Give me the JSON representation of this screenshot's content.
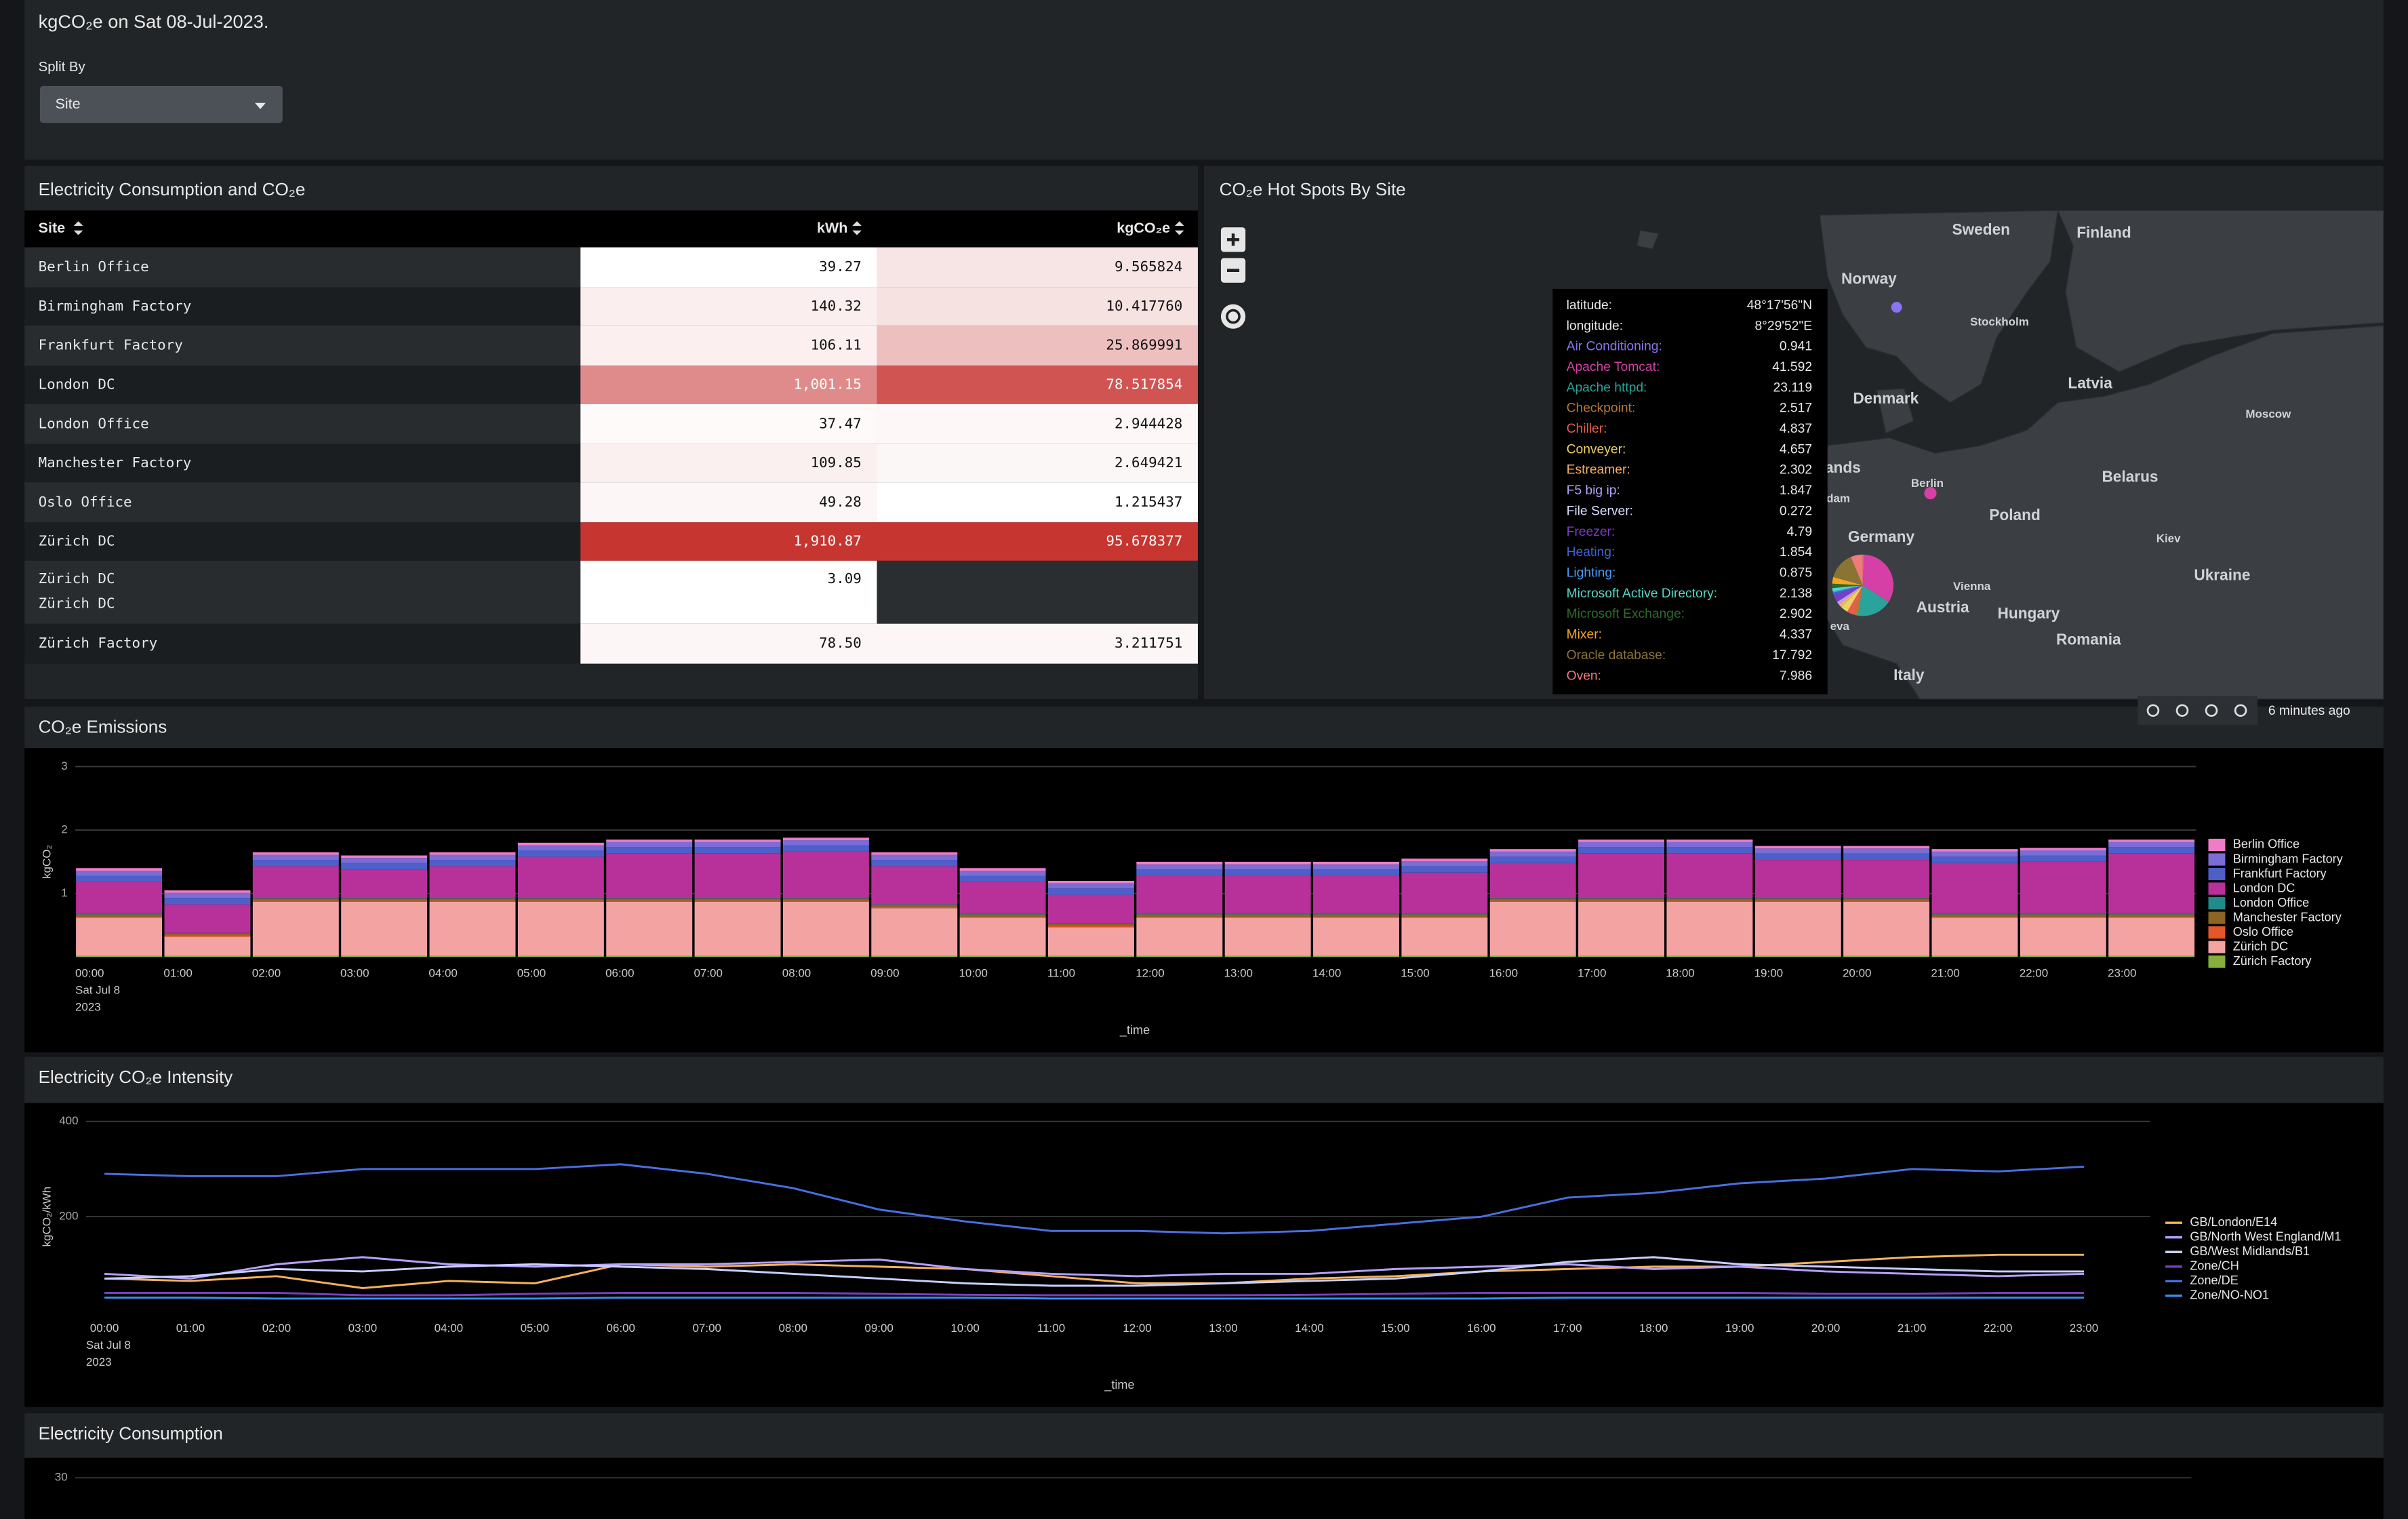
{
  "header": {
    "title": "kgCO₂e on Sat 08-Jul-2023.",
    "split_by_label": "Split By",
    "split_by_value": "Site"
  },
  "table_panel": {
    "title": "Electricity Consumption and CO₂e",
    "columns": [
      "Site",
      "kWh",
      "kgCO₂e"
    ],
    "rows": [
      [
        "Berlin Office",
        "39.27",
        "9.565824"
      ],
      [
        "Birmingham Factory",
        "140.32",
        "10.417760"
      ],
      [
        "Frankfurt Factory",
        "106.11",
        "25.869991"
      ],
      [
        "London DC",
        "1,001.15",
        "78.517854"
      ],
      [
        "London Office",
        "37.47",
        "2.944428"
      ],
      [
        "Manchester Factory",
        "109.85",
        "2.649421"
      ],
      [
        "Oslo Office",
        "49.28",
        "1.215437"
      ],
      [
        "Zürich DC",
        "1,910.87",
        "95.678377"
      ],
      [
        [
          "Zürich DC",
          "Zürich DC"
        ],
        "3.09"
      ],
      [
        "Zürich Factory",
        "78.50",
        "3.211751"
      ]
    ],
    "cell_colors": [
      [
        "#ffffff",
        "#f7e4e4"
      ],
      [
        "#fbeeee",
        "#f7e2e2"
      ],
      [
        "#fbefef",
        "#eebfbf"
      ],
      [
        "#df8b8b",
        "#cf5452"
      ],
      [
        "#fefafa",
        "#fdf7f7"
      ],
      [
        "#fbf0f0",
        "#fcf7f7"
      ],
      [
        "#fdf6f6",
        "#ffffff"
      ],
      [
        "#c73530",
        "#c73530"
      ],
      [
        "#ffffff"
      ],
      [
        "#fdf6f6",
        "#fcf6f6"
      ]
    ]
  },
  "map_panel": {
    "title": "CO₂e Hot Spots By Site",
    "place_labels": [
      "Sweden",
      "Finland",
      "Norway",
      "Stockholm",
      "Latvia",
      "Moscow",
      "Denmark",
      "Belarus",
      "ands",
      "dam",
      "Berlin",
      "Poland",
      "Germany",
      "Kiev",
      "Ukraine",
      "Vienna",
      "Austria",
      "Hungary",
      "eva",
      "Romania",
      "Italy"
    ],
    "tooltip": {
      "latitude_label": "latitude:",
      "latitude": "48°17'56\"N",
      "longitude_label": "longitude:",
      "longitude": "8°29'52\"E",
      "items": [
        {
          "name": "Air Conditioning:",
          "color": "#8b74f2",
          "value": 0.941
        },
        {
          "name": "Apache Tomcat:",
          "color": "#d63fa6",
          "value": 41.592
        },
        {
          "name": "Apache httpd:",
          "color": "#2aa39b",
          "value": 23.119
        },
        {
          "name": "Checkpoint:",
          "color": "#b97836",
          "value": 2.517
        },
        {
          "name": "Chiller:",
          "color": "#e5604a",
          "value": 4.837
        },
        {
          "name": "Conveyer:",
          "color": "#f0d262",
          "value": 4.657
        },
        {
          "name": "Estreamer:",
          "color": "#f5b06a",
          "value": 2.302
        },
        {
          "name": "F5 big ip:",
          "color": "#b3a3ff",
          "value": 1.847
        },
        {
          "name": "File Server:",
          "color": "#d9ddff",
          "value": 0.272
        },
        {
          "name": "Freezer:",
          "color": "#7d3bc8",
          "value": 4.79
        },
        {
          "name": "Heating:",
          "color": "#3f62d6",
          "value": 1.854
        },
        {
          "name": "Lighting:",
          "color": "#4a9af0",
          "value": 0.875
        },
        {
          "name": "Microsoft Active Directory:",
          "color": "#58d6c6",
          "value": 2.138
        },
        {
          "name": "Microsoft Exchange:",
          "color": "#2e6b2a",
          "value": 2.902
        },
        {
          "name": "Mixer:",
          "color": "#f5a623",
          "value": 4.337
        },
        {
          "name": "Oracle database:",
          "color": "#8a7433",
          "value": 17.792
        },
        {
          "name": "Oven:",
          "color": "#f07a7a",
          "value": 7.986
        }
      ]
    },
    "updated": "6 minutes ago"
  },
  "chart_data": [
    {
      "type": "stacked_bar",
      "title": "CO₂e Emissions",
      "y_label": "kgCO₂",
      "x_label": "_time",
      "x_date_lines": [
        "Sat Jul 8",
        "2023"
      ],
      "categories": [
        "00:00",
        "01:00",
        "02:00",
        "03:00",
        "04:00",
        "05:00",
        "06:00",
        "07:00",
        "08:00",
        "09:00",
        "10:00",
        "11:00",
        "12:00",
        "13:00",
        "14:00",
        "15:00",
        "16:00",
        "17:00",
        "18:00",
        "19:00",
        "20:00",
        "21:00",
        "22:00",
        "23:00"
      ],
      "ylim": [
        0,
        3
      ],
      "yticks": [
        1,
        2,
        3
      ],
      "grid": true,
      "series": [
        {
          "name": "Berlin Office",
          "color": "#f07cc8",
          "values": [
            0.04,
            0.04,
            0.04,
            0.04,
            0.04,
            0.04,
            0.04,
            0.04,
            0.04,
            0.04,
            0.04,
            0.04,
            0.04,
            0.04,
            0.04,
            0.04,
            0.04,
            0.04,
            0.04,
            0.04,
            0.04,
            0.04,
            0.04,
            0.04
          ]
        },
        {
          "name": "Birmingham Factory",
          "color": "#7b6cd6",
          "values": [
            0.08,
            0.08,
            0.08,
            0.08,
            0.08,
            0.08,
            0.08,
            0.08,
            0.08,
            0.08,
            0.08,
            0.08,
            0.08,
            0.08,
            0.08,
            0.08,
            0.08,
            0.08,
            0.08,
            0.08,
            0.08,
            0.08,
            0.08,
            0.08
          ]
        },
        {
          "name": "Frankfurt Factory",
          "color": "#4d5fc8",
          "values": [
            0.1,
            0.1,
            0.1,
            0.1,
            0.1,
            0.1,
            0.1,
            0.1,
            0.1,
            0.1,
            0.1,
            0.1,
            0.1,
            0.1,
            0.1,
            0.1,
            0.1,
            0.1,
            0.1,
            0.1,
            0.1,
            0.1,
            0.1,
            0.1
          ]
        },
        {
          "name": "London DC",
          "color": "#b8309a",
          "values": [
            0.5,
            0.45,
            0.5,
            0.45,
            0.5,
            0.65,
            0.7,
            0.7,
            0.73,
            0.6,
            0.5,
            0.45,
            0.6,
            0.6,
            0.6,
            0.65,
            0.55,
            0.7,
            0.7,
            0.6,
            0.6,
            0.8,
            0.82,
            0.95
          ]
        },
        {
          "name": "London Office",
          "color": "#1f8c8c",
          "values": [
            0.01,
            0.01,
            0.01,
            0.01,
            0.01,
            0.01,
            0.01,
            0.01,
            0.01,
            0.01,
            0.01,
            0.01,
            0.01,
            0.01,
            0.01,
            0.01,
            0.01,
            0.01,
            0.01,
            0.01,
            0.01,
            0.01,
            0.01,
            0.01
          ]
        },
        {
          "name": "Manchester Factory",
          "color": "#8c6423",
          "values": [
            0.03,
            0.03,
            0.03,
            0.03,
            0.03,
            0.03,
            0.03,
            0.03,
            0.03,
            0.03,
            0.03,
            0.03,
            0.03,
            0.03,
            0.03,
            0.03,
            0.03,
            0.03,
            0.03,
            0.03,
            0.03,
            0.03,
            0.03,
            0.03
          ]
        },
        {
          "name": "Oslo Office",
          "color": "#e5562b",
          "values": [
            0.02,
            0.02,
            0.02,
            0.02,
            0.02,
            0.02,
            0.02,
            0.02,
            0.02,
            0.02,
            0.02,
            0.02,
            0.02,
            0.02,
            0.02,
            0.02,
            0.02,
            0.02,
            0.02,
            0.02,
            0.02,
            0.02,
            0.02,
            0.02
          ]
        },
        {
          "name": "Zürich DC",
          "color": "#f4a3a3",
          "values": [
            0.6,
            0.3,
            0.85,
            0.85,
            0.85,
            0.85,
            0.85,
            0.85,
            0.85,
            0.75,
            0.6,
            0.45,
            0.6,
            0.6,
            0.6,
            0.6,
            0.85,
            0.85,
            0.85,
            0.85,
            0.85,
            0.6,
            0.6,
            0.6
          ]
        },
        {
          "name": "Zürich Factory",
          "color": "#86b03a",
          "values": [
            0.02,
            0.02,
            0.02,
            0.02,
            0.02,
            0.02,
            0.02,
            0.02,
            0.02,
            0.02,
            0.02,
            0.02,
            0.02,
            0.02,
            0.02,
            0.02,
            0.02,
            0.02,
            0.02,
            0.02,
            0.02,
            0.02,
            0.02,
            0.02
          ]
        }
      ]
    },
    {
      "type": "line",
      "title": "Electricity CO₂e Intensity",
      "y_label": "kgCO₂/kWh",
      "x_label": "_time",
      "x_date_lines": [
        "Sat Jul 8",
        "2023"
      ],
      "categories": [
        "00:00",
        "01:00",
        "02:00",
        "03:00",
        "04:00",
        "05:00",
        "06:00",
        "07:00",
        "08:00",
        "09:00",
        "10:00",
        "11:00",
        "12:00",
        "13:00",
        "14:00",
        "15:00",
        "16:00",
        "17:00",
        "18:00",
        "19:00",
        "20:00",
        "21:00",
        "22:00",
        "23:00"
      ],
      "ylim": [
        0,
        400
      ],
      "yticks": [
        200,
        400
      ],
      "grid": true,
      "series": [
        {
          "name": "GB/London/E14",
          "color": "#f5b25c",
          "values": [
            70,
            65,
            75,
            50,
            65,
            60,
            100,
            95,
            100,
            95,
            90,
            75,
            60,
            60,
            70,
            75,
            85,
            90,
            95,
            95,
            105,
            115,
            120,
            120
          ]
        },
        {
          "name": "GB/North West England/M1",
          "color": "#b7a0ff",
          "values": [
            80,
            70,
            100,
            115,
            100,
            95,
            100,
            100,
            105,
            110,
            90,
            80,
            75,
            80,
            80,
            90,
            95,
            100,
            90,
            95,
            85,
            80,
            75,
            80
          ]
        },
        {
          "name": "GB/West Midlands/B1",
          "color": "#c8d0ff",
          "values": [
            70,
            75,
            90,
            85,
            95,
            100,
            95,
            90,
            80,
            70,
            60,
            55,
            55,
            60,
            65,
            70,
            85,
            105,
            115,
            100,
            95,
            90,
            85,
            85
          ]
        },
        {
          "name": "Zone/CH",
          "color": "#7a3fc2",
          "values": [
            40,
            40,
            40,
            35,
            35,
            38,
            40,
            40,
            40,
            38,
            36,
            35,
            35,
            35,
            36,
            38,
            40,
            40,
            40,
            40,
            38,
            38,
            40,
            40
          ]
        },
        {
          "name": "Zone/DE",
          "color": "#4a6fe3",
          "values": [
            290,
            285,
            285,
            300,
            300,
            300,
            310,
            290,
            260,
            215,
            190,
            170,
            170,
            165,
            170,
            185,
            200,
            240,
            250,
            270,
            280,
            300,
            295,
            305
          ]
        },
        {
          "name": "Zone/NO-NO1",
          "color": "#3a8ff0",
          "values": [
            30,
            30,
            28,
            28,
            28,
            28,
            30,
            30,
            30,
            30,
            30,
            28,
            28,
            28,
            28,
            28,
            28,
            30,
            30,
            30,
            30,
            30,
            30,
            30
          ]
        }
      ]
    },
    {
      "type": "bar",
      "title": "Electricity Consumption",
      "ylim": [
        0,
        30
      ],
      "yticks": [
        30
      ],
      "grid": true
    }
  ]
}
